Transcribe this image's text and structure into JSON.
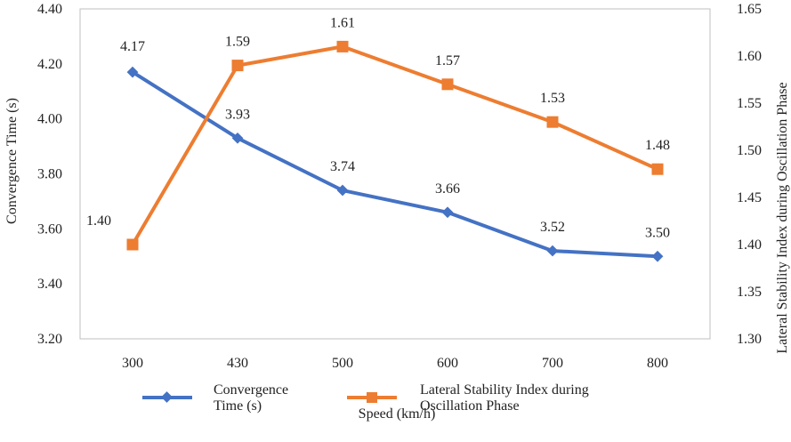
{
  "chart_data": {
    "type": "line",
    "categories": [
      "300",
      "430",
      "500",
      "600",
      "700",
      "800"
    ],
    "xlabel": "Speed (km/h)",
    "ylabel_left": "Convergence Time (s)",
    "ylabel_right": "Lateral Stability Index during Oscillation Phase",
    "ylim_left": [
      3.2,
      4.4
    ],
    "ylim_right": [
      1.3,
      1.65
    ],
    "yticks_left": [
      "3.20",
      "3.40",
      "3.60",
      "3.80",
      "4.00",
      "4.20",
      "4.40"
    ],
    "yticks_right": [
      "1.30",
      "1.35",
      "1.40",
      "1.45",
      "1.50",
      "1.55",
      "1.60",
      "1.65"
    ],
    "grid": false,
    "legend_position": "bottom",
    "series": [
      {
        "name": "Convergence Time (s)",
        "axis": "left",
        "color": "#4472C4",
        "marker": "diamond",
        "values": [
          4.17,
          3.93,
          3.74,
          3.66,
          3.52,
          3.5
        ],
        "labels": [
          "4.17",
          "3.93",
          "3.74",
          "3.66",
          "3.52",
          "3.50"
        ]
      },
      {
        "name": "Lateral Stability Index during Oscillation Phase",
        "axis": "right",
        "color": "#ED7D31",
        "marker": "square",
        "values": [
          1.4,
          1.59,
          1.61,
          1.57,
          1.53,
          1.48
        ],
        "labels": [
          "1.40",
          "1.59",
          "1.61",
          "1.57",
          "1.53",
          "1.48"
        ]
      }
    ],
    "legend": {
      "items": [
        {
          "line1": "Convergence",
          "line2": "Time (s)"
        },
        {
          "line1": "Lateral Stability Index during",
          "line2": "Oscillation Phase"
        }
      ]
    }
  }
}
